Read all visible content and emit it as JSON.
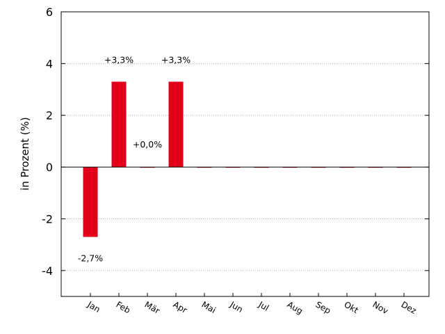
{
  "chart_data": {
    "type": "bar",
    "title": "",
    "xlabel": "",
    "ylabel": "in Prozent (%)",
    "categories": [
      "Jan",
      "Feb",
      "Mär",
      "Apr",
      "Mai",
      "Jun",
      "Jul",
      "Aug",
      "Sep",
      "Okt",
      "Nov",
      "Dez"
    ],
    "values": [
      -2.7,
      3.3,
      0.0,
      3.3,
      0,
      0,
      0,
      0,
      0,
      0,
      0,
      0
    ],
    "data_labels": [
      "-2,7%",
      "+3,3%",
      "+0,0%",
      "+3,3%",
      "",
      "",
      "",
      "",
      "",
      "",
      "",
      ""
    ],
    "ylim": [
      -5,
      6
    ],
    "yticks": [
      -4,
      -2,
      0,
      2,
      4,
      6
    ],
    "ytick_labels": [
      "-4",
      "-2",
      "0",
      "2",
      "4",
      "6"
    ],
    "grid": "horizontal-dotted",
    "bar_color": "#e2001a"
  }
}
